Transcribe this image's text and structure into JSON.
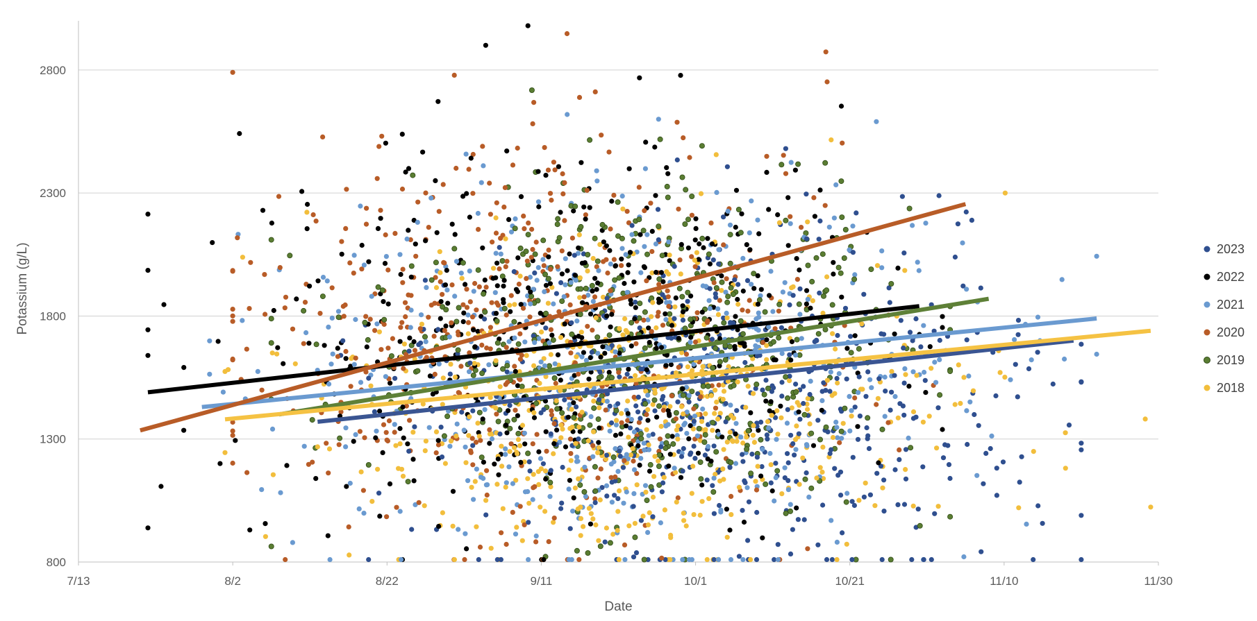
{
  "chart_data": {
    "type": "scatter",
    "title": "",
    "xlabel": "Date",
    "ylabel": "Potassium (g/L)",
    "x_axis_type": "date",
    "x_tick_labels": [
      "7/13",
      "8/2",
      "8/22",
      "9/11",
      "10/1",
      "10/21",
      "11/10",
      "11/30"
    ],
    "x_range": [
      "2000-07-13",
      "2000-11-30"
    ],
    "y_ticks": [
      800,
      1300,
      1800,
      2300,
      2800
    ],
    "ylim": [
      800,
      3000
    ],
    "grid": "horizontal",
    "legend_position": "right",
    "series": [
      {
        "name": "2023",
        "color": "#2F4F8F",
        "trend": {
          "start": [
            "08-13",
            1370
          ],
          "end": [
            "11-19",
            1700
          ],
          "color": "#3A5592"
        },
        "cloud": {
          "x_center": "10-05",
          "x_spread_days": 20,
          "x_min": "08-16",
          "x_max": "11-20",
          "y_center": 1450,
          "y_spread": 330,
          "count": 520,
          "seed": 11
        }
      },
      {
        "name": "2022",
        "color": "#000000",
        "trend": {
          "start": [
            "07-22",
            1490
          ],
          "end": [
            "10-30",
            1840
          ],
          "color": "#000000"
        },
        "cloud": {
          "x_center": "09-16",
          "x_spread_days": 20,
          "x_min": "07-22",
          "x_max": "11-02",
          "y_center": 1720,
          "y_spread": 380,
          "count": 520,
          "seed": 22
        }
      },
      {
        "name": "2021",
        "color": "#6A9AD0",
        "trend": {
          "start": [
            "07-29",
            1430
          ],
          "end": [
            "11-22",
            1790
          ],
          "color": "#6A9AD0"
        },
        "cloud": {
          "x_center": "09-22",
          "x_spread_days": 22,
          "x_min": "07-30",
          "x_max": "11-22",
          "y_center": 1560,
          "y_spread": 370,
          "count": 520,
          "seed": 33
        }
      },
      {
        "name": "2020",
        "color": "#B85C27",
        "trend": {
          "start": [
            "07-21",
            1335
          ],
          "end": [
            "11-05",
            2255
          ],
          "color": "#B85C27"
        },
        "cloud": {
          "x_center": "09-07",
          "x_spread_days": 19,
          "x_min": "08-02",
          "x_max": "11-04",
          "y_center": 1720,
          "y_spread": 400,
          "count": 520,
          "seed": 44
        }
      },
      {
        "name": "2019",
        "color": "#5A7D32",
        "trend": {
          "start": [
            "08-08",
            1400
          ],
          "end": [
            "11-08",
            1870
          ],
          "color": "#5E8037"
        },
        "cloud": {
          "x_center": "09-25",
          "x_spread_days": 18,
          "x_min": "08-07",
          "x_max": "11-03",
          "y_center": 1630,
          "y_spread": 340,
          "count": 520,
          "seed": 55
        }
      },
      {
        "name": "2018",
        "color": "#F2BE3C",
        "trend": {
          "start": [
            "08-01",
            1380
          ],
          "end": [
            "11-29",
            1740
          ],
          "color": "#F5C243"
        },
        "cloud": {
          "x_center": "09-24",
          "x_spread_days": 19,
          "x_min": "08-01",
          "x_max": "11-29",
          "y_center": 1450,
          "y_spread": 320,
          "count": 560,
          "seed": 66
        }
      }
    ]
  }
}
